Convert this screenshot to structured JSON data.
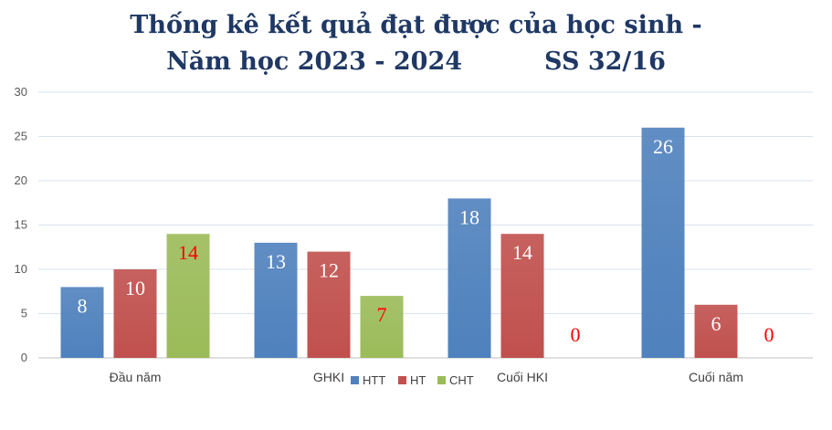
{
  "chart_data": {
    "type": "bar",
    "title_line1": "Thống kê kết quả đạt được của học sinh -",
    "title_line2": "Năm học 2023 - 2024",
    "title_ss": "SS 32/16",
    "categories": [
      "Đầu năm",
      "GHKI",
      "Cuối HKI",
      "Cuối năm"
    ],
    "series": [
      {
        "name": "HTT",
        "values": [
          8,
          13,
          18,
          26
        ],
        "color": "#4f81bd",
        "label_color": "#ffffff"
      },
      {
        "name": "HT",
        "values": [
          10,
          12,
          14,
          6
        ],
        "color": "#c0504d",
        "label_color": "#ffffff"
      },
      {
        "name": "CHT",
        "values": [
          14,
          7,
          0,
          0
        ],
        "color": "#9bbb59",
        "label_color": "#ff0000"
      }
    ],
    "ylim": [
      0,
      30
    ],
    "yticks": [
      "0",
      "5",
      "10",
      "15",
      "20",
      "25",
      "30"
    ],
    "grid": true,
    "legend_position": "bottom"
  }
}
